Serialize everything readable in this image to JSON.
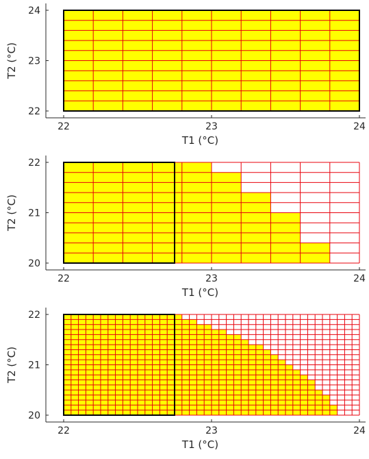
{
  "colors": {
    "fill": "#ffff00",
    "grid": "#e8000b",
    "boundary": "#000000",
    "axis": "#262626",
    "background": "#ffffff"
  },
  "chart_data": [
    {
      "type": "heatmap",
      "xlabel": "T1 (°C)",
      "ylabel": "T2 (°C)",
      "xlim": [
        22,
        24
      ],
      "ylim": [
        22,
        24
      ],
      "xticks": [
        "22",
        "23",
        "24"
      ],
      "yticks": [
        "22",
        "23",
        "24"
      ],
      "grid": {
        "x_divisions": 10,
        "y_divisions": 10
      },
      "filled_columns_top_y": [
        24,
        24,
        24,
        24,
        24,
        24,
        24,
        24,
        24,
        24
      ],
      "outlined_box": {
        "x": [
          22,
          24
        ],
        "y": [
          22,
          24
        ]
      }
    },
    {
      "type": "heatmap",
      "xlabel": "T1 (°C)",
      "ylabel": "T2 (°C)",
      "xlim": [
        22,
        24
      ],
      "ylim": [
        20,
        22
      ],
      "xticks": [
        "22",
        "23",
        "24"
      ],
      "yticks": [
        "20",
        "21",
        "22"
      ],
      "grid": {
        "x_divisions": 10,
        "y_divisions": 10
      },
      "filled_columns_top_y": [
        22,
        22,
        22,
        22,
        22,
        21.8,
        21.4,
        21.0,
        20.4,
        20.0
      ],
      "outlined_box": {
        "x": [
          22,
          22.75
        ],
        "y": [
          20,
          22
        ]
      }
    },
    {
      "type": "heatmap",
      "xlabel": "T1 (°C)",
      "ylabel": "T2 (°C)",
      "xlim": [
        22,
        24
      ],
      "ylim": [
        20,
        22
      ],
      "xticks": [
        "22",
        "23",
        "24"
      ],
      "yticks": [
        "20",
        "21",
        "22"
      ],
      "grid": {
        "x_divisions": 40,
        "y_divisions": 20
      },
      "filled_columns_top_y": [
        22,
        22,
        22,
        22,
        22,
        22,
        22,
        22,
        22,
        22,
        22,
        22,
        22,
        22,
        22,
        22,
        21.9,
        21.9,
        21.8,
        21.8,
        21.7,
        21.7,
        21.6,
        21.6,
        21.5,
        21.4,
        21.4,
        21.3,
        21.2,
        21.1,
        21.0,
        20.9,
        20.8,
        20.7,
        20.5,
        20.4,
        20.2,
        20.0,
        20.0,
        20.0
      ],
      "outlined_box": {
        "x": [
          22,
          22.75
        ],
        "y": [
          20,
          22
        ]
      }
    }
  ]
}
